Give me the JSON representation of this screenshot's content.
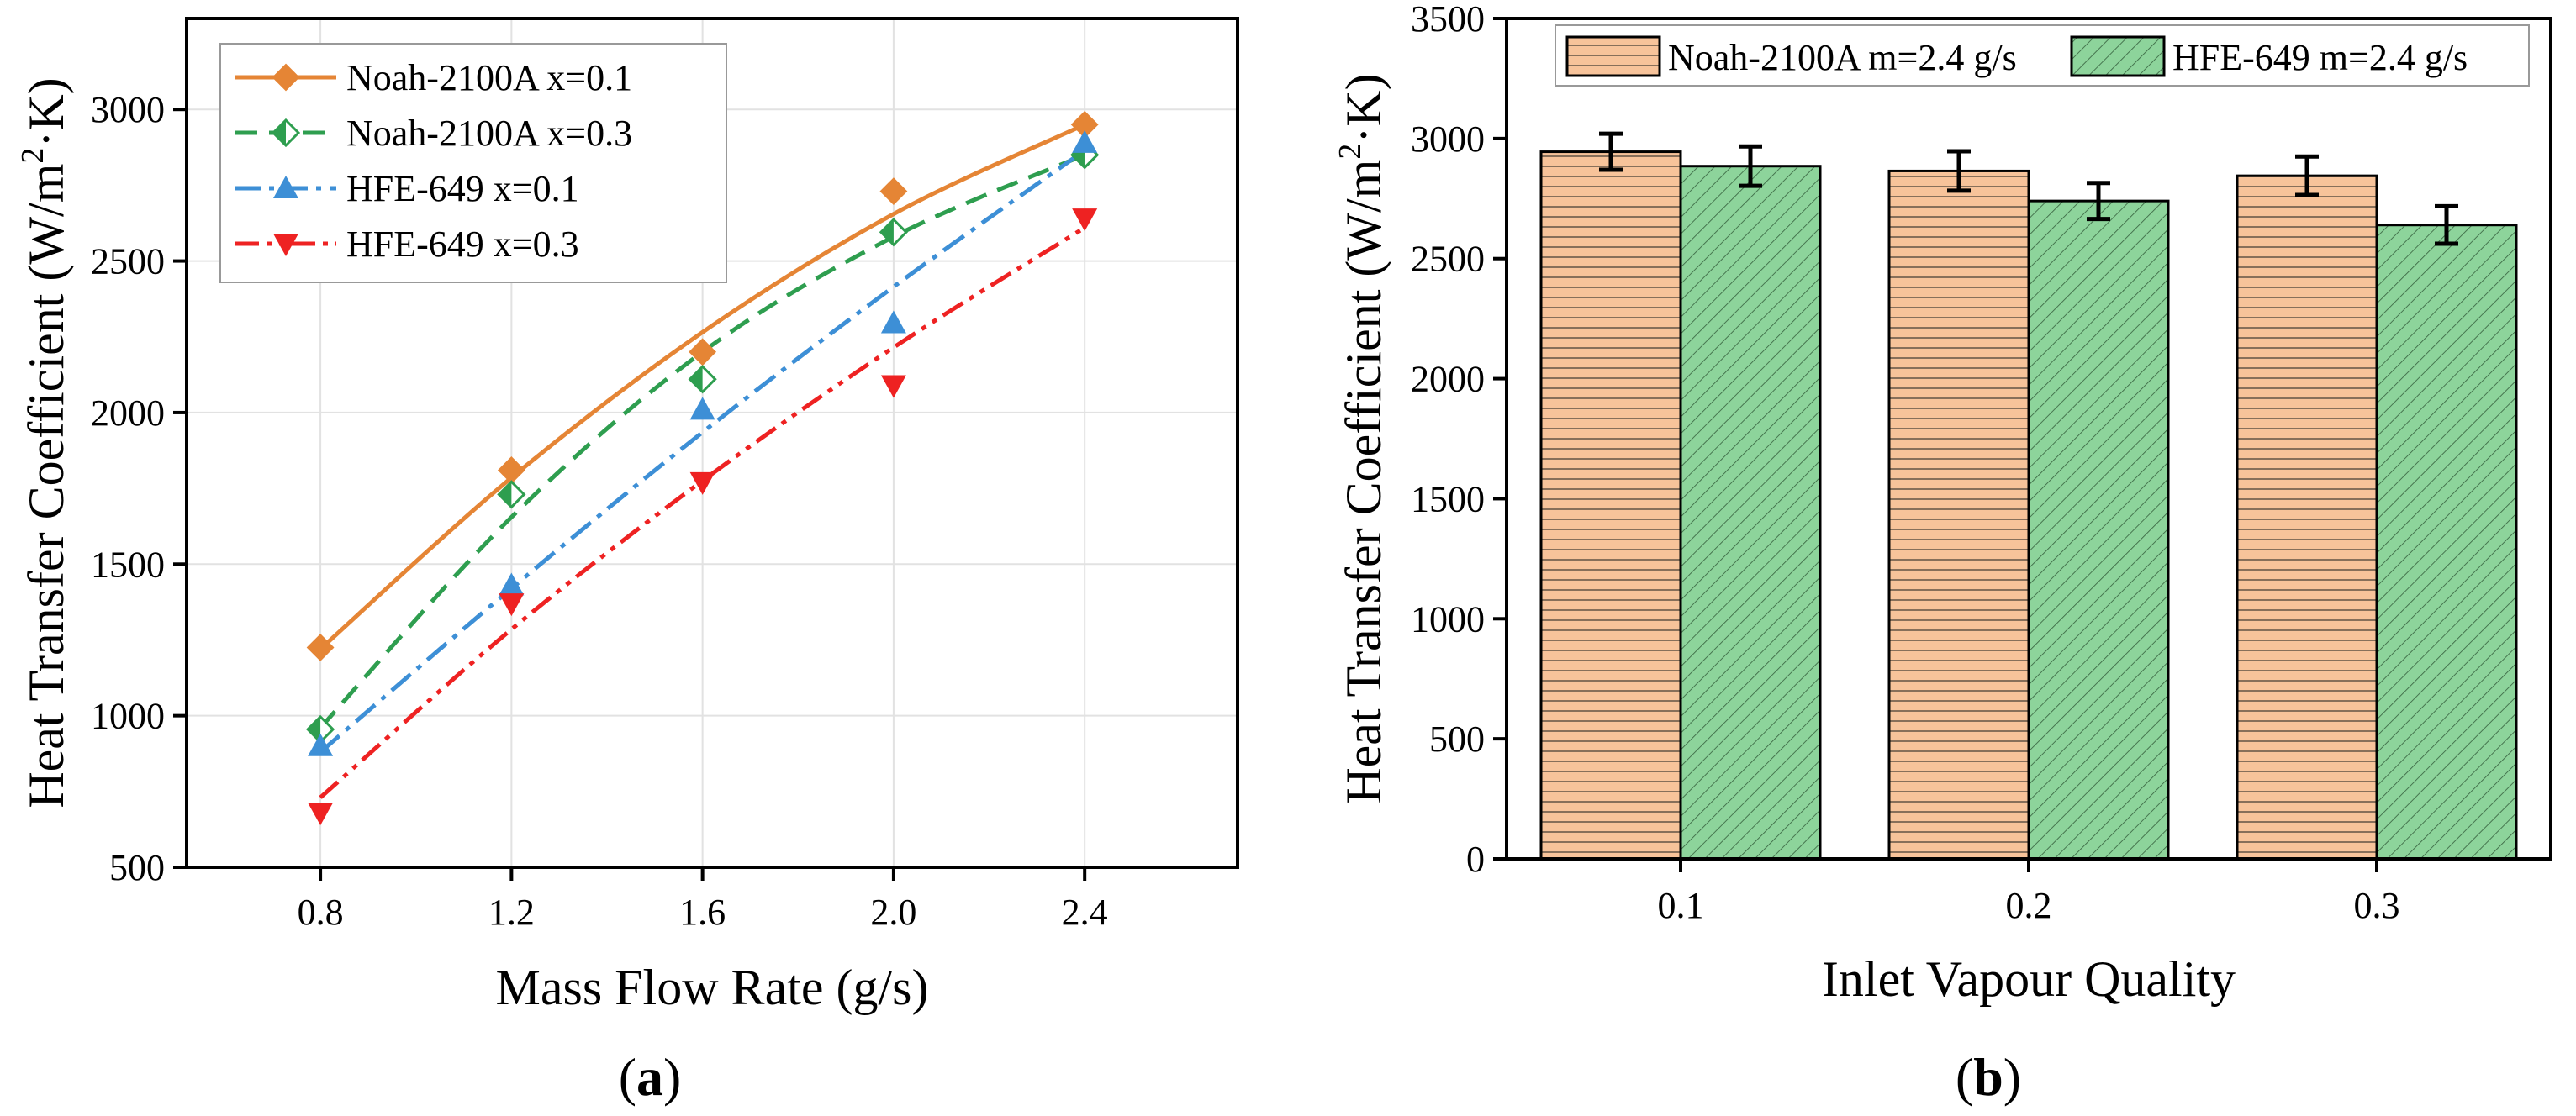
{
  "chart_data": [
    {
      "type": "line",
      "panel_label": "a",
      "xlabel": "Mass Flow Rate (g/s)",
      "ylabel_main": "Heat Transfer Coefficient (W/m",
      "ylabel_sup": "2",
      "ylabel_tail": "·K)",
      "xlim": [
        0.52,
        2.72
      ],
      "ylim": [
        500,
        3300
      ],
      "xticks": [
        "0.8",
        "1.2",
        "1.6",
        "2.0",
        "2.4"
      ],
      "yticks": [
        "500",
        "1000",
        "1500",
        "2000",
        "2500",
        "3000"
      ],
      "legend_position": "top-left",
      "x": [
        0.8,
        1.2,
        1.6,
        2.0,
        2.4
      ],
      "series": [
        {
          "name": "Noah-2100A   x=0.1",
          "color": "#E58535",
          "marker": "diamond-filled",
          "line": "solid",
          "values": [
            1225,
            1810,
            2200,
            2730,
            2950
          ],
          "fit": [
            1220,
            1785,
            2265,
            2655,
            2950
          ]
        },
        {
          "name": "Noah-2100A   x=0.3",
          "color": "#2E9E4F",
          "marker": "diamond-half",
          "line": "dash",
          "values": [
            955,
            1730,
            2110,
            2595,
            2850
          ],
          "fit": [
            960,
            1655,
            2200,
            2580,
            2850
          ]
        },
        {
          "name": "HFE-649  x=0.1",
          "color": "#3D8FD6",
          "marker": "triangle-up",
          "line": "dashdot",
          "values": [
            900,
            1430,
            2010,
            2295,
            2890
          ],
          "fit": [
            880,
            1420,
            1935,
            2415,
            2865
          ]
        },
        {
          "name": "HFE-649  x=0.3",
          "color": "#EE2222",
          "marker": "triangle-down",
          "line": "dashdotdot",
          "values": [
            680,
            1370,
            1770,
            2090,
            2640
          ],
          "fit": [
            730,
            1285,
            1775,
            2215,
            2610
          ]
        }
      ]
    },
    {
      "type": "bar",
      "panel_label": "b",
      "xlabel": "Inlet Vapour Quality",
      "ylabel_main": "Heat Transfer Coefficient (W/m",
      "ylabel_sup": "2",
      "ylabel_tail": "·K)",
      "ylim": [
        0,
        3500
      ],
      "categories": [
        "0.1",
        "0.2",
        "0.3"
      ],
      "yticks": [
        "0",
        "500",
        "1000",
        "1500",
        "2000",
        "2500",
        "3000",
        "3500"
      ],
      "legend_position": "top",
      "series": [
        {
          "name": "Noah-2100A m=2.4 g/s",
          "color": "#F7C39A",
          "hatch": "horizontal",
          "values": [
            2945,
            2865,
            2845
          ],
          "errors": [
            75,
            82,
            80
          ]
        },
        {
          "name": "HFE-649 m=2.4 g/s",
          "color": "#8DD49B",
          "hatch": "diagonal",
          "values": [
            2885,
            2740,
            2640
          ],
          "errors": [
            82,
            75,
            78
          ]
        }
      ]
    }
  ]
}
